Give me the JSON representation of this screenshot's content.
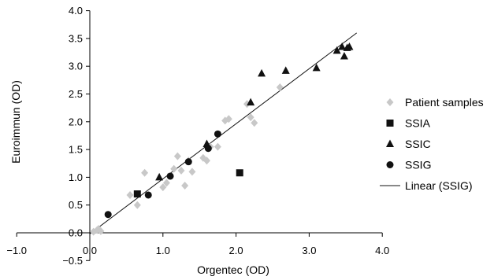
{
  "chart_data": {
    "type": "scatter",
    "title": "",
    "xlabel": "Orgentec (OD)",
    "ylabel": "Euroimmun (OD)",
    "xlim": [
      -1.0,
      4.0
    ],
    "ylim": [
      -0.5,
      4.0
    ],
    "x_ticks": [
      -1.0,
      0.0,
      1.0,
      2.0,
      3.0,
      4.0
    ],
    "y_ticks": [
      -0.5,
      0.0,
      0.5,
      1.0,
      1.5,
      2.0,
      2.5,
      3.0,
      3.5,
      4.0
    ],
    "x_tick_labels": [
      "−1.0",
      "0.0",
      "1.0",
      "2.0",
      "3.0",
      "4.0"
    ],
    "y_tick_labels": [
      "−0.5",
      "0.0",
      "0.5",
      "1.0",
      "1.5",
      "2.0",
      "2.5",
      "3.0",
      "3.5",
      "4.0"
    ],
    "grid": false,
    "legend": "right",
    "series": [
      {
        "name": "Patient samples",
        "marker": "diamond",
        "color": "#c8c8c8",
        "points": [
          [
            0.05,
            0.02
          ],
          [
            0.1,
            0.05
          ],
          [
            0.15,
            0.03
          ],
          [
            0.12,
            0.07
          ],
          [
            0.55,
            0.68
          ],
          [
            0.65,
            0.5
          ],
          [
            0.75,
            1.08
          ],
          [
            1.0,
            0.82
          ],
          [
            1.05,
            0.9
          ],
          [
            1.15,
            1.15
          ],
          [
            1.2,
            1.38
          ],
          [
            1.25,
            1.12
          ],
          [
            1.3,
            0.85
          ],
          [
            1.35,
            1.3
          ],
          [
            1.4,
            1.1
          ],
          [
            1.55,
            1.35
          ],
          [
            1.6,
            1.3
          ],
          [
            1.65,
            1.55
          ],
          [
            1.75,
            1.55
          ],
          [
            1.85,
            2.02
          ],
          [
            1.9,
            2.05
          ],
          [
            2.15,
            2.32
          ],
          [
            2.2,
            2.08
          ],
          [
            2.25,
            1.98
          ],
          [
            2.6,
            2.62
          ]
        ]
      },
      {
        "name": "SSIA",
        "marker": "square",
        "color": "#111111",
        "points": [
          [
            0.65,
            0.7
          ],
          [
            2.05,
            1.08
          ]
        ]
      },
      {
        "name": "SSIC",
        "marker": "triangle",
        "color": "#111111",
        "points": [
          [
            0.95,
            1.0
          ],
          [
            1.6,
            1.6
          ],
          [
            2.2,
            2.35
          ],
          [
            2.35,
            2.87
          ],
          [
            2.68,
            2.92
          ],
          [
            3.1,
            2.97
          ],
          [
            3.38,
            3.28
          ],
          [
            3.45,
            3.35
          ],
          [
            3.48,
            3.18
          ],
          [
            3.52,
            3.33
          ],
          [
            3.55,
            3.35
          ]
        ]
      },
      {
        "name": "SSIG",
        "marker": "circle",
        "color": "#111111",
        "points": [
          [
            0.25,
            0.33
          ],
          [
            0.8,
            0.68
          ],
          [
            1.1,
            1.02
          ],
          [
            1.35,
            1.28
          ],
          [
            1.62,
            1.52
          ],
          [
            1.75,
            1.78
          ]
        ]
      }
    ],
    "trendline": {
      "name": "Linear (SSIG)",
      "color": "#111111",
      "x": [
        0.0,
        3.65
      ],
      "y": [
        -0.02,
        3.6
      ]
    }
  }
}
